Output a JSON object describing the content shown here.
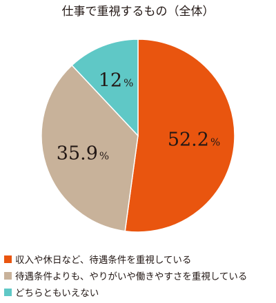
{
  "chart_data": {
    "type": "pie",
    "title": "仕事で重視するもの（全体）",
    "slices": [
      {
        "label": "収入や休日など、待遇条件を重視している",
        "value": 52.2,
        "display_value": "52.2",
        "unit": "%",
        "color": "#e9550f"
      },
      {
        "label": "待遇条件よりも、やりがいや働きやすさを重視している",
        "value": 35.9,
        "display_value": "35.9",
        "unit": "%",
        "color": "#c8b29a"
      },
      {
        "label": "どちらともいえない",
        "value": 12,
        "display_value": "12",
        "unit": "%",
        "color": "#5fc8c6"
      }
    ],
    "start_angle_deg": 0,
    "direction": "clockwise",
    "legend_position": "bottom"
  }
}
